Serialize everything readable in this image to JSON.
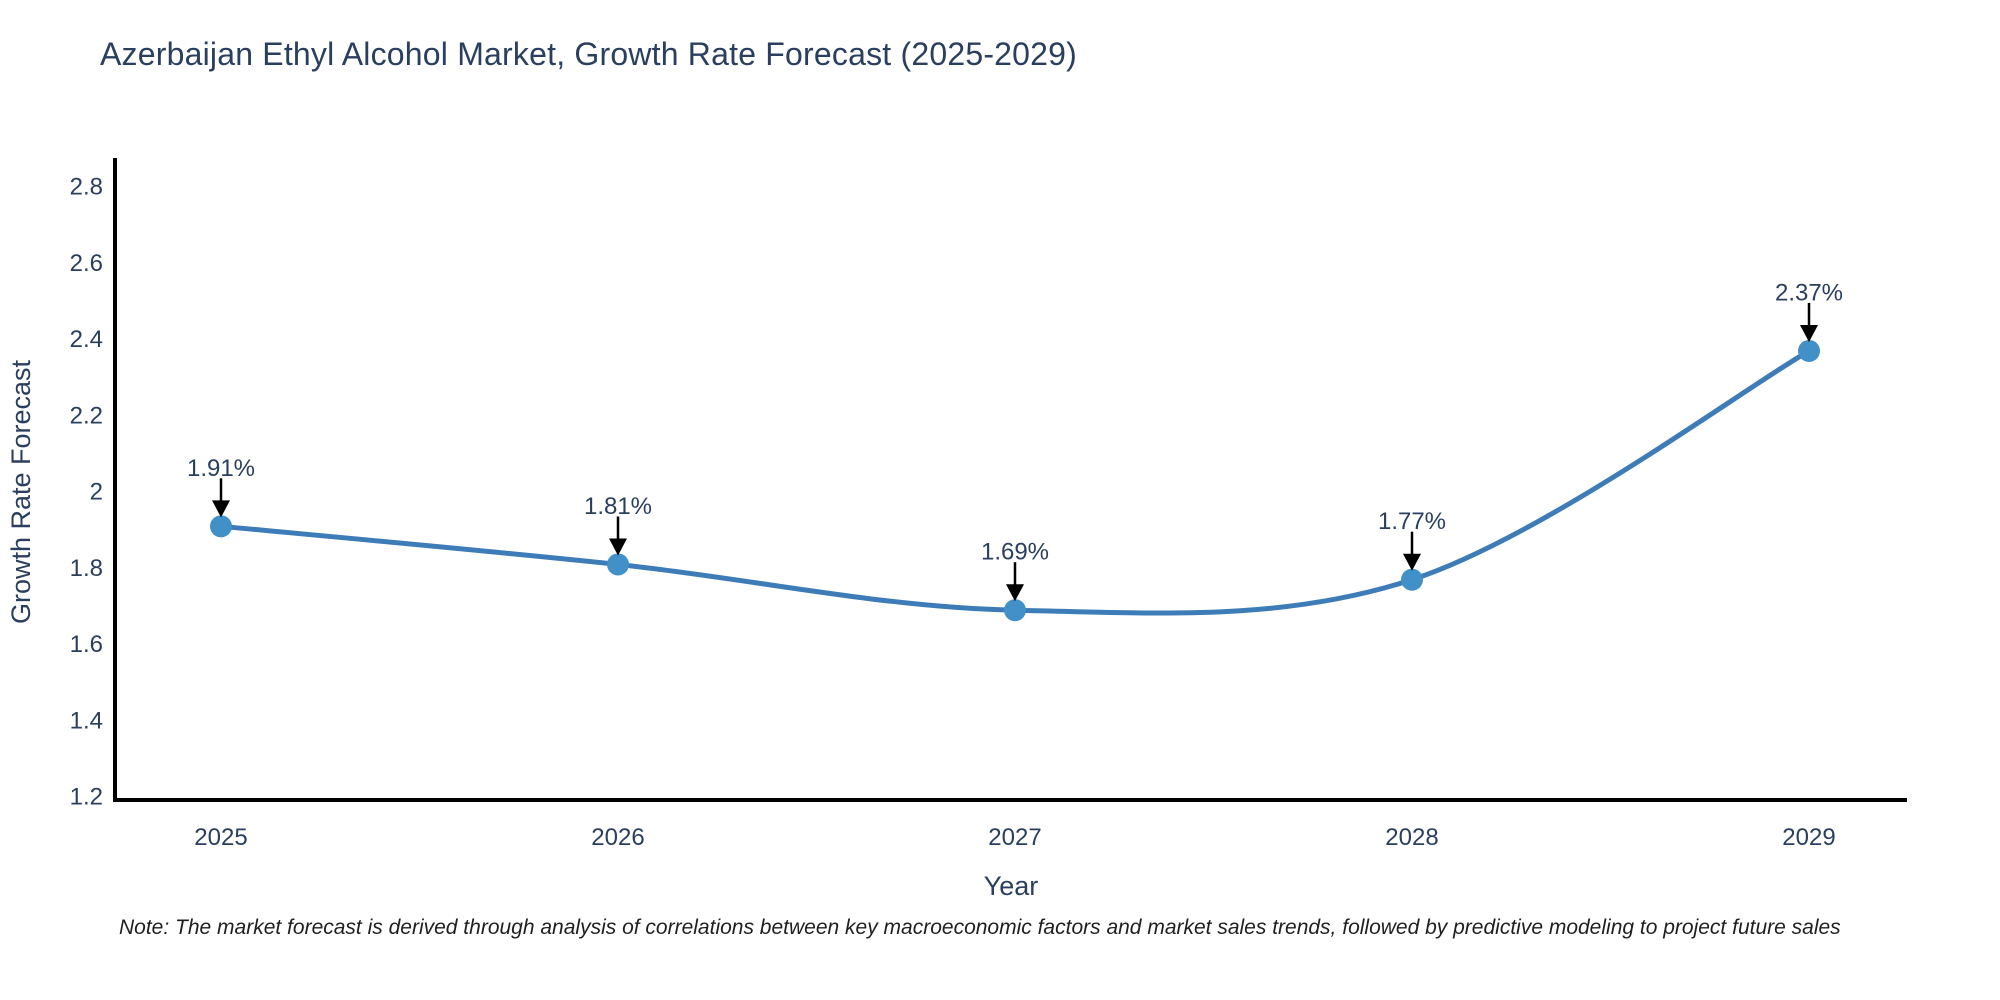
{
  "title": "Azerbaijan Ethyl Alcohol Market, Growth Rate Forecast (2025-2029)",
  "note": "Note: The market forecast is derived through analysis of correlations between key macroeconomic factors and market sales trends, followed by predictive modeling to project future sales",
  "chart_data": {
    "type": "line",
    "title": "Azerbaijan Ethyl Alcohol Market, Growth Rate Forecast (2025-2029)",
    "xlabel": "Year",
    "ylabel": "Growth Rate Forecast",
    "x": [
      2025,
      2026,
      2027,
      2028,
      2029
    ],
    "xtick_labels": [
      "2025",
      "2026",
      "2027",
      "2028",
      "2029"
    ],
    "series": [
      {
        "name": "Growth Rate Forecast",
        "values": [
          1.91,
          1.81,
          1.69,
          1.77,
          2.37
        ],
        "point_labels": [
          "1.91%",
          "1.81%",
          "1.69%",
          "1.77%",
          "2.37%"
        ]
      }
    ],
    "ylim": [
      1.2,
      2.8
    ],
    "yticks": [
      1.2,
      1.4,
      1.6,
      1.8,
      2,
      2.2,
      2.4,
      2.6,
      2.8
    ],
    "ytick_labels": [
      "1.2",
      "1.4",
      "1.6",
      "1.8",
      "2",
      "2.2",
      "2.4",
      "2.6",
      "2.8"
    ],
    "grid": false,
    "legend": false,
    "line_shape": "spline",
    "annotation_arrows": true,
    "colors": {
      "line": "#3e7cb8",
      "marker": "#4190c8",
      "axis": "#000000",
      "tick_text": "#2a3f5f",
      "annotation_text": "#2a3f5f",
      "arrow": "#000000",
      "title_text": "#2a3f5f",
      "background": "#ffffff"
    }
  }
}
